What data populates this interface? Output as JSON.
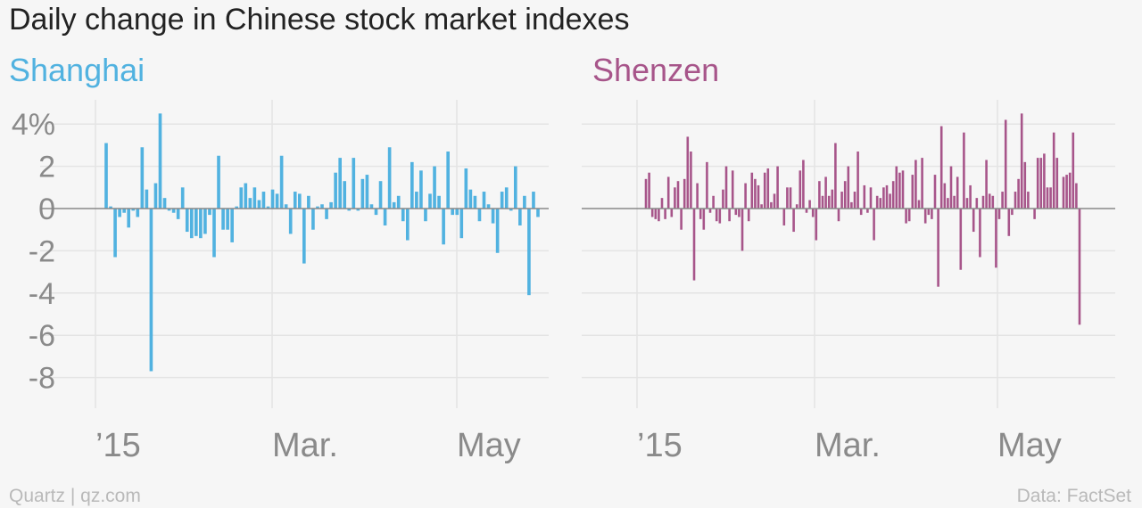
{
  "title": "Daily change in Chinese stock market indexes",
  "footer_left": "Quartz | qz.com",
  "footer_right": "Data: FactSet",
  "chart_data": [
    {
      "type": "bar",
      "title": "Shanghai",
      "color": "#51b2e0",
      "ylim": [
        -9.5,
        5
      ],
      "yticks": [
        "4%",
        "2",
        "0",
        "-2",
        "-4",
        "-6",
        "-8"
      ],
      "ytick_values": [
        4,
        2,
        0,
        -2,
        -4,
        -6,
        -8
      ],
      "xticks": [
        "’2015-01-01",
        "2015-03-01",
        "2015-05-01"
      ],
      "xtick_labels": [
        "’15",
        "Mar.",
        "May"
      ],
      "xlim": [
        "2014-12-31",
        "2015-06-01"
      ],
      "grid": true,
      "x": [
        "2015-01-05",
        "2015-01-06",
        "2015-01-07",
        "2015-01-08",
        "2015-01-09",
        "2015-01-12",
        "2015-01-13",
        "2015-01-14",
        "2015-01-15",
        "2015-01-16",
        "2015-01-19",
        "2015-01-20",
        "2015-01-21",
        "2015-01-22",
        "2015-01-23",
        "2015-01-26",
        "2015-01-27",
        "2015-01-28",
        "2015-01-29",
        "2015-01-30",
        "2015-02-02",
        "2015-02-03",
        "2015-02-04",
        "2015-02-05",
        "2015-02-06",
        "2015-02-09",
        "2015-02-10",
        "2015-02-11",
        "2015-02-12",
        "2015-02-13",
        "2015-02-16",
        "2015-02-17",
        "2015-02-25",
        "2015-02-26",
        "2015-02-27",
        "2015-03-02",
        "2015-03-03",
        "2015-03-04",
        "2015-03-05",
        "2015-03-06",
        "2015-03-09",
        "2015-03-10",
        "2015-03-11",
        "2015-03-12",
        "2015-03-13",
        "2015-03-16",
        "2015-03-17",
        "2015-03-18",
        "2015-03-19",
        "2015-03-20",
        "2015-03-23",
        "2015-03-24",
        "2015-03-25",
        "2015-03-26",
        "2015-03-27",
        "2015-03-30",
        "2015-03-31",
        "2015-04-01",
        "2015-04-02",
        "2015-04-03",
        "2015-04-07",
        "2015-04-08",
        "2015-04-09",
        "2015-04-10",
        "2015-04-13",
        "2015-04-14",
        "2015-04-15",
        "2015-04-16",
        "2015-04-17",
        "2015-04-20",
        "2015-04-21",
        "2015-04-22",
        "2015-04-23",
        "2015-04-24",
        "2015-04-27",
        "2015-04-28",
        "2015-04-29",
        "2015-04-30",
        "2015-05-04",
        "2015-05-05",
        "2015-05-06",
        "2015-05-07",
        "2015-05-08",
        "2015-05-11",
        "2015-05-12",
        "2015-05-13",
        "2015-05-14",
        "2015-05-15",
        "2015-05-18",
        "2015-05-19",
        "2015-05-20",
        "2015-05-21",
        "2015-05-22",
        "2015-05-25",
        "2015-05-26",
        "2015-05-27",
        "2015-05-28"
      ],
      "values": [
        3.1,
        0.1,
        -2.3,
        -0.4,
        -0.2,
        -0.9,
        -0.1,
        -0.4,
        2.9,
        0.9,
        -7.7,
        1.2,
        4.5,
        0.5,
        -0.1,
        -0.2,
        -0.5,
        1.0,
        -1.1,
        -1.4,
        -1.3,
        -1.4,
        -1.2,
        -0.3,
        -2.3,
        2.5,
        -1.0,
        -1.0,
        -1.6,
        0.1,
        1.0,
        1.2,
        0.5,
        1.0,
        0.4,
        0.8,
        0.1,
        0.9,
        0.7,
        2.5,
        0.2,
        -1.2,
        0.8,
        0.7,
        -2.6,
        0.6,
        -1.0,
        0.1,
        0.2,
        -0.5,
        0.3,
        1.7,
        2.4,
        1.3,
        -0.1,
        2.4,
        -0.1,
        1.4,
        1.6,
        0.2,
        -0.3,
        1.3,
        -0.8,
        2.9,
        0.3,
        0.6,
        -0.6,
        -1.5,
        2.2,
        0.8,
        1.8,
        -0.6,
        0.7,
        2.0,
        0.6,
        -1.7,
        2.7,
        -0.3,
        -0.3,
        -1.4,
        1.9,
        0.9,
        0.6,
        -0.6,
        0.8,
        0.2,
        -0.7,
        -2.1,
        0.8,
        1.0,
        -0.1,
        2.0,
        -0.8,
        0.6,
        -4.1,
        0.8,
        -0.4
      ]
    },
    {
      "type": "bar",
      "title": "Shenzen",
      "color": "#a7558a",
      "ylim": [
        -9.5,
        5
      ],
      "xtick_labels": [
        "’15",
        "Mar.",
        "May"
      ],
      "grid": true,
      "values": [
        1.4,
        1.7,
        -0.4,
        -0.5,
        -0.6,
        0.5,
        -0.5,
        1.5,
        -0.4,
        1.0,
        1.3,
        -1.0,
        1.4,
        3.4,
        2.7,
        -3.4,
        1.2,
        -0.5,
        -1.0,
        2.2,
        -0.2,
        0.6,
        -0.6,
        -0.7,
        0.9,
        2.0,
        -0.6,
        1.8,
        -0.3,
        -0.4,
        -2.0,
        1.2,
        -0.6,
        1.7,
        1.4,
        1.1,
        0.2,
        1.7,
        1.9,
        0.3,
        0.7,
        2.0,
        0.0,
        -0.8,
        1.0,
        1.0,
        -1.1,
        0.2,
        1.8,
        2.3,
        -0.2,
        0.4,
        -0.4,
        -1.5,
        1.3,
        0.6,
        1.5,
        0.6,
        0.9,
        3.1,
        -0.6,
        0.8,
        1.3,
        2.0,
        0.3,
        0.8,
        2.7,
        -0.3,
        1.1,
        -0.2,
        1.0,
        -1.5,
        0.6,
        0.5,
        1.0,
        1.1,
        0.7,
        1.3,
        2.0,
        1.7,
        1.8,
        -0.7,
        -0.6,
        1.6,
        2.3,
        0.4,
        2.4,
        -0.7,
        -0.3,
        -0.5,
        1.6,
        -3.7,
        3.9,
        1.2,
        0.5,
        2.0,
        0.6,
        1.5,
        -2.9,
        3.6,
        0.5,
        1.1,
        -1.1,
        0.5,
        -2.3,
        0.6,
        2.3,
        0.7,
        0.6,
        -2.8,
        -0.5,
        0.8,
        4.2,
        -1.3,
        -0.3,
        0.8,
        1.4,
        4.5,
        2.2,
        0.8,
        0.0,
        -0.5,
        2.4,
        2.4,
        2.6,
        1.0,
        1.0,
        3.6,
        2.4,
        0.0,
        1.5,
        1.6,
        1.7,
        3.6,
        1.2,
        -5.5
      ]
    }
  ]
}
